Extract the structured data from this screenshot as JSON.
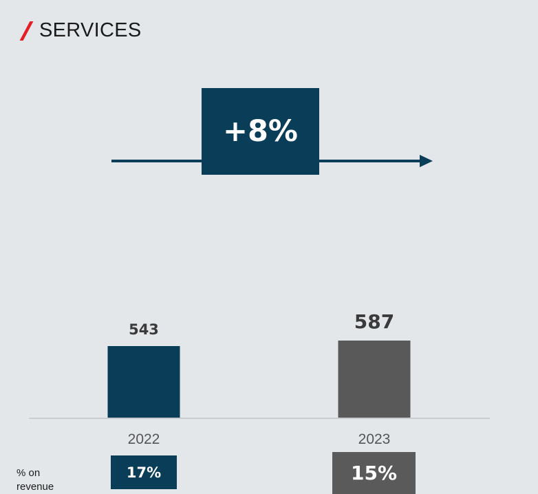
{
  "header": {
    "title": "SERVICES"
  },
  "growth": {
    "label": "+8%"
  },
  "chart_data": {
    "type": "bar",
    "categories": [
      "2022",
      "2023"
    ],
    "values": [
      543,
      587
    ],
    "title": "SERVICES",
    "xlabel": "",
    "ylabel": "",
    "value_labels": [
      "543",
      "587"
    ],
    "colors": [
      "#0a3d57",
      "#595959"
    ],
    "grid": false
  },
  "revenue_share": {
    "label": "% on revenue",
    "values": [
      "17%",
      "15%"
    ]
  },
  "colors": {
    "accent": "#e31e24",
    "primary": "#0a3d57",
    "secondary": "#5a5a5a",
    "background": "#e4e7ea"
  }
}
